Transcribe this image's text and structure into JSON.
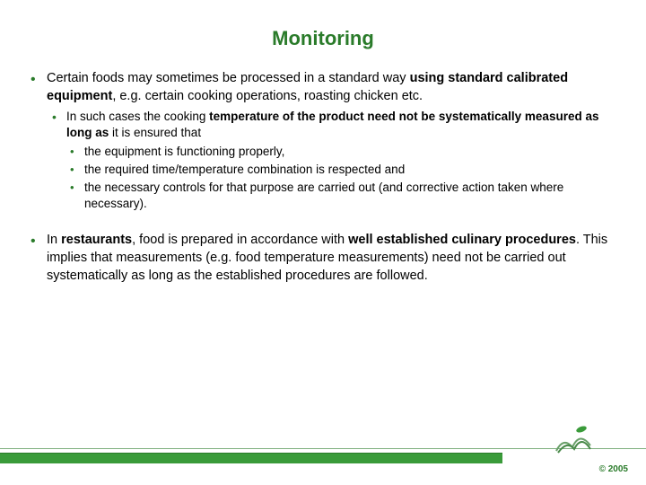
{
  "title": "Monitoring",
  "colors": {
    "title": "#2a7b2a",
    "bullet": "#2a7b2a",
    "text": "#000000",
    "bar": "#3a9b3a",
    "bar_border": "#2a7b2a",
    "background": "#ffffff"
  },
  "fontsize": {
    "title": 22,
    "body": 14.5,
    "sub": 13.5,
    "copyright": 10
  },
  "bullets": [
    {
      "runs": [
        {
          "t": "Certain foods may sometimes be processed in a standard way ",
          "b": false
        },
        {
          "t": "using standard calibrated equipment",
          "b": true
        },
        {
          "t": ", e.g. certain cooking operations, roasting chicken etc.",
          "b": false
        }
      ],
      "children": [
        {
          "runs": [
            {
              "t": "In such cases the cooking ",
              "b": false
            },
            {
              "t": "temperature of the product need not be systematically measured as long as ",
              "b": true
            },
            {
              "t": "it is ensured that",
              "b": false
            }
          ],
          "children": [
            {
              "runs": [
                {
                  "t": "the equipment is functioning properly,",
                  "b": false
                }
              ]
            },
            {
              "runs": [
                {
                  "t": "the required time/temperature combination is respected and",
                  "b": false
                }
              ]
            },
            {
              "runs": [
                {
                  "t": "the necessary controls for that purpose are carried out (and corrective action taken where necessary).",
                  "b": false
                }
              ]
            }
          ]
        }
      ]
    },
    {
      "runs": [
        {
          "t": "In ",
          "b": false
        },
        {
          "t": "restaurants",
          "b": true
        },
        {
          "t": ", food is prepared in accordance with ",
          "b": false
        },
        {
          "t": "well established culinary procedures",
          "b": true
        },
        {
          "t": ". This implies that measurements (e.g. food temperature measurements) need not be carried out systematically as long as the established procedures are followed.",
          "b": false
        }
      ]
    }
  ],
  "copyright": "© 2005"
}
